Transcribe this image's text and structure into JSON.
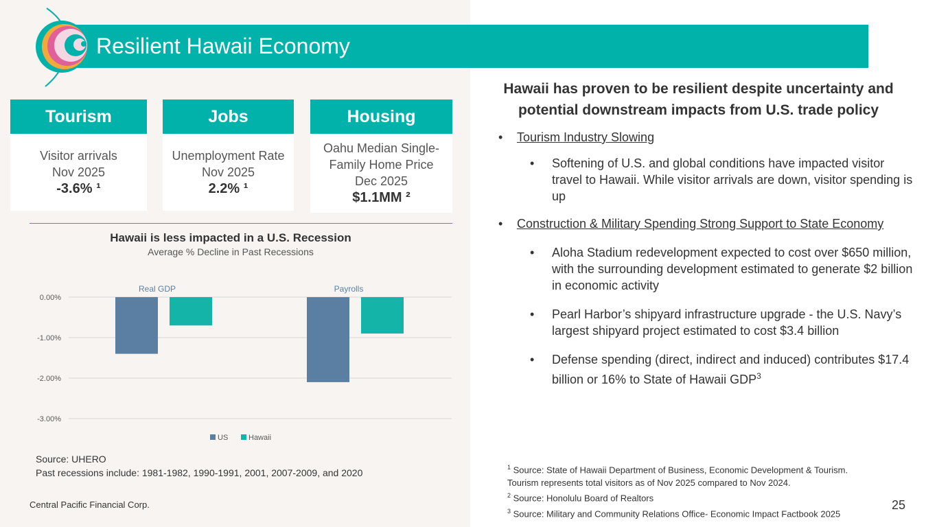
{
  "title": "Resilient Hawaii Economy",
  "cards": [
    {
      "header": "Tourism",
      "line1": "Visitor arrivals",
      "line2": "Nov 2025",
      "value": "-3.6% ¹"
    },
    {
      "header": "Jobs",
      "line1": "Unemployment Rate",
      "line2": "Nov 2025",
      "value": "2.2% ¹"
    },
    {
      "header": "Housing",
      "line1": "Oahu Median Single-",
      "line2": "Family Home Price",
      "line3": "Dec 2025",
      "value": "$1.1MM ²"
    }
  ],
  "chart_data": {
    "type": "bar",
    "title": "Hawaii is less impacted in a U.S. Recession",
    "subtitle": "Average % Decline in Past Recessions",
    "categories": [
      "Real GDP",
      "Payrolls"
    ],
    "series": [
      {
        "name": "US",
        "values": [
          -1.4,
          -2.1
        ],
        "color": "#5b7fa2"
      },
      {
        "name": "Hawaii",
        "values": [
          -0.7,
          -0.9
        ],
        "color": "#14b5a8"
      }
    ],
    "yticks": [
      "0.00%",
      "-1.00%",
      "-2.00%",
      "-3.00%"
    ],
    "ylim": [
      -3,
      0
    ],
    "legend": "bottom"
  },
  "source_lines": {
    "line1": "Source: UHERO",
    "line2": "Past recessions include: 1981-1982, 1990-1991, 2001, 2007-2009, and 2020"
  },
  "company": "Central Pacific Financial Corp.",
  "heading": "Hawaii has proven to be resilient despite uncertainty and potential downstream impacts from U.S. trade policy",
  "bullets": {
    "tourism": "Tourism Industry Slowing",
    "tourism_sub": "Softening of U.S. and global conditions have impacted visitor travel to Hawaii. While visitor arrivals are down, visitor spending is up",
    "construction": "Construction & Military Spending Strong Support to State Economy",
    "stadium": "Aloha Stadium redevelopment expected to cost over $650 million, with the surrounding development estimated to generate $2 billion in economic activity",
    "pearl": "Pearl Harbor’s shipyard infrastructure upgrade - the U.S. Navy’s largest shipyard project estimated to cost $3.4 billion",
    "defense": "Defense spending (direct, indirect and induced) contributes $17.4 billion or 16% to State of Hawaii GDP",
    "defense_sup": "3"
  },
  "footnotes": {
    "f1_num": "1",
    "f1": " Source: State of Hawaii Department of Business, Economic Development & Tourism.",
    "f1b": "Tourism represents total visitors as of Nov 2025 compared to Nov 2024.",
    "f2_num": "2",
    "f2": " Source: Honolulu Board of Realtors",
    "f3_num": "3",
    "f3": " Source: Military and Community Relations Office- Economic Impact Factbook 2025"
  },
  "page_number": "25",
  "colors": {
    "teal": "#00b2a9",
    "us_bar": "#5b7fa2",
    "hawaii_bar": "#14b5a8"
  }
}
